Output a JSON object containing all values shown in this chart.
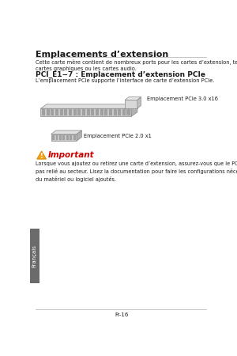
{
  "title": "Emplacements d’extension",
  "intro_text": "Cette carte mère contient de nombreux ports pour les cartes d’extension, tels que les\ncartes graphiques ou les cartes audio.",
  "section_title": "PCI_E1−7 : Emplacement d’extension PCIe",
  "section_subtitle": "L’emplacement PCIe supporte l’interface de carte d’extension PCIe.",
  "label_x16": "Emplacement PCIe 3.0 x16",
  "label_x1": "Emplacement PCIe 2.0 x1",
  "important_label": "Important",
  "important_text": "Lorsque vous ajoutez ou retirez une carte d’extension, assurez-vous que le PC n’est\npas relié au secteur. Lisez la documentation pour faire les configurations nécessaires\ndu matériel ou logiciel ajoutés.",
  "footer_text": "Fr-16",
  "sidebar_text": "Français",
  "bg_color": "#ffffff",
  "sidebar_bg": "#6b6b6b",
  "text_color": "#1a1a1a",
  "gray_text": "#444444",
  "sidebar_text_color": "#ffffff",
  "important_color": "#cc0000",
  "line_color": "#aaaaaa",
  "slot_face": "#c8c8c8",
  "slot_top": "#e0e0e0",
  "slot_side": "#b0b0b0",
  "slot_tooth": "#a0a0a0",
  "slot_edge": "#888888"
}
